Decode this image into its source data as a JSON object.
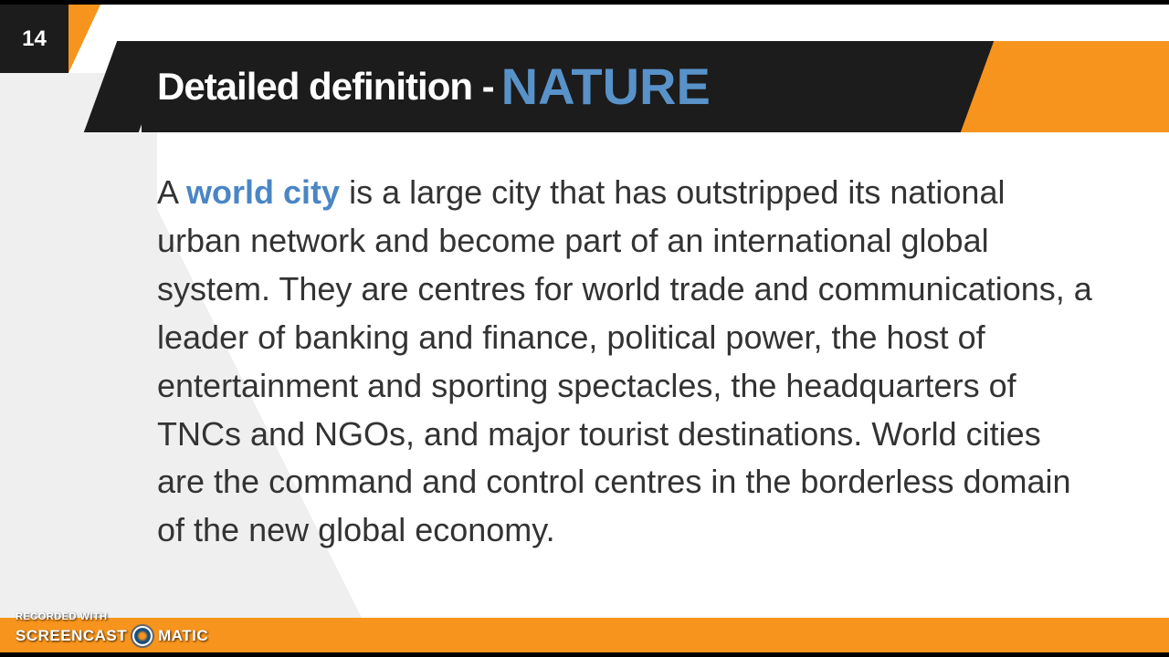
{
  "slide": {
    "page_number": "14",
    "title_prefix": "Detailed definition -",
    "title_highlight": "NATURE",
    "body_prefix": "A ",
    "body_highlight": "world city",
    "body_rest": " is a large city that has outstripped its national urban network and become part of an international global system. They are centres for world trade and communications, a leader of banking and finance, political power, the host of entertainment and sporting spectacles, the headquarters of TNCs and NGOs, and major tourist destinations.   World cities are the command and control centres in the borderless domain of the new global economy."
  },
  "watermark": {
    "recorded_with": "RECORDED WITH",
    "brand_left": "SCREENCAST",
    "brand_right": "MATIC"
  },
  "colors": {
    "accent_orange": "#f7941d",
    "accent_blue": "#5892c9",
    "header_bg": "#1c1c1c",
    "sidebar_gray": "#efefef",
    "body_text": "#333333"
  }
}
